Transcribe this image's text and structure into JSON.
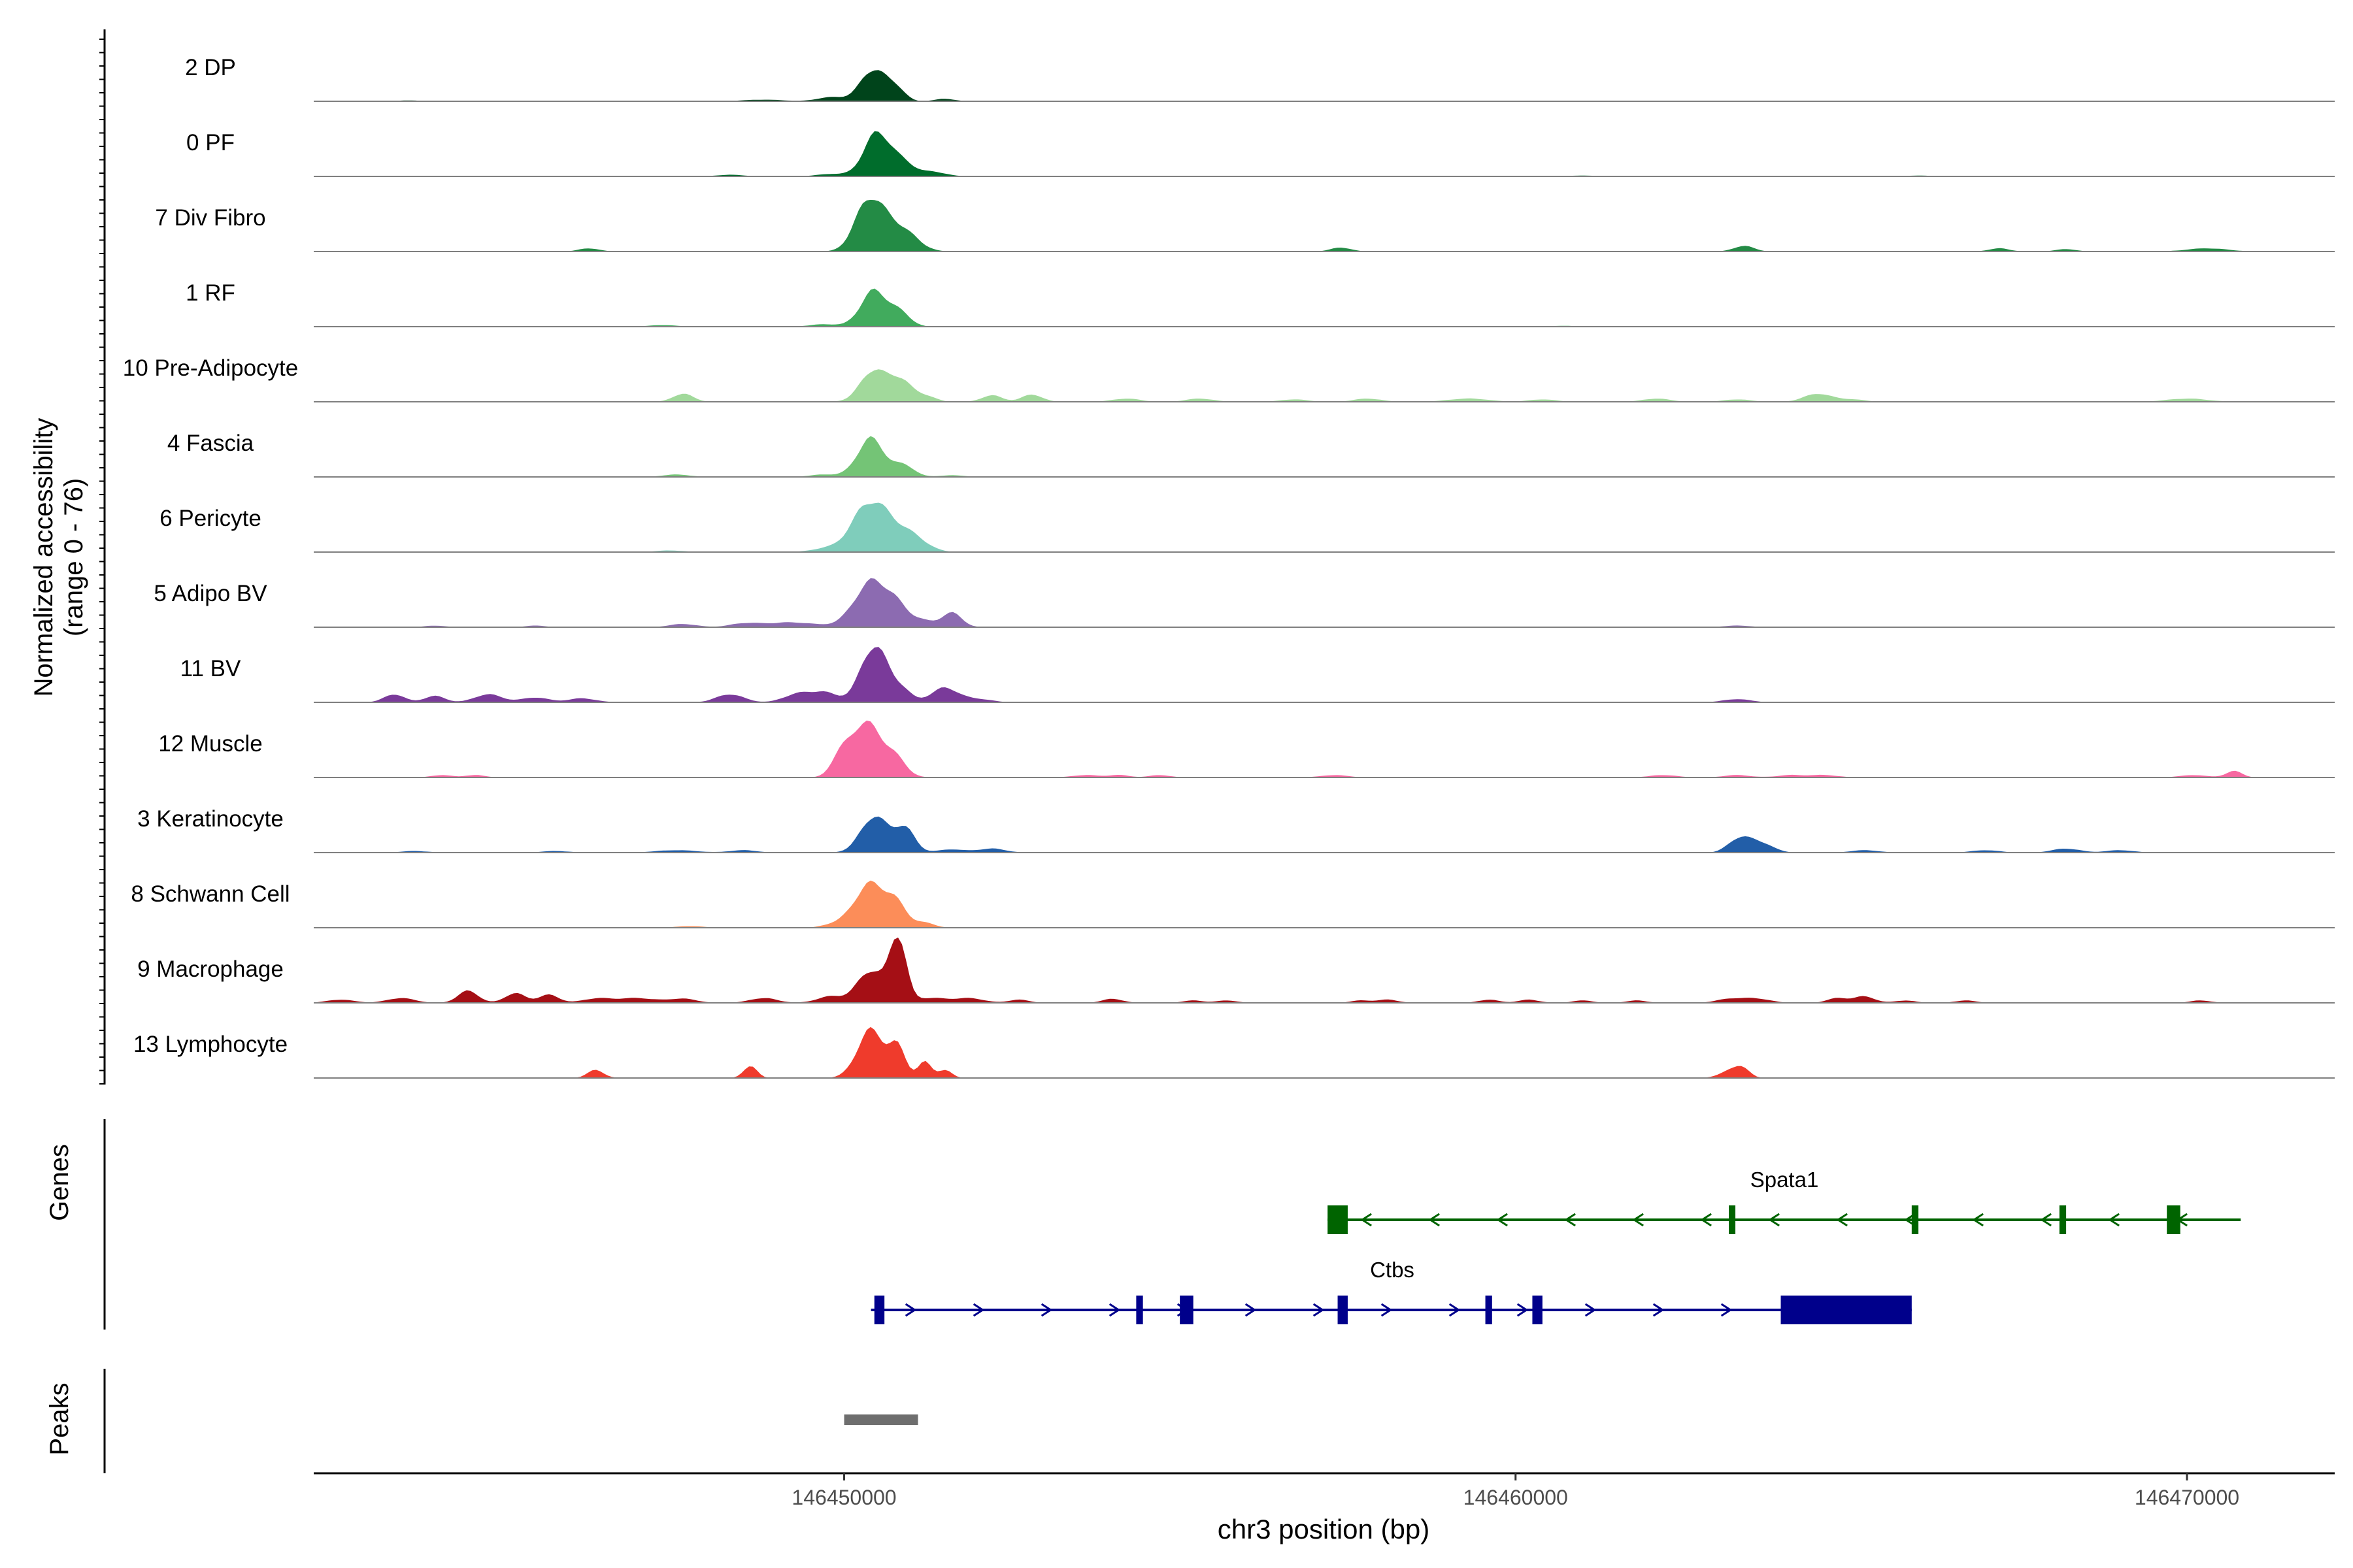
{
  "chart_data": {
    "type": "area",
    "title": "",
    "ylabel_line1": "Normalized accessibility",
    "ylabel_line2": "(range 0 - 76)",
    "yrange": [
      0,
      76
    ],
    "xlabel": "chr3 position (bp)",
    "xlim": [
      146442100,
      146472200
    ],
    "xticks": [
      146450000,
      146460000,
      146470000
    ],
    "xtick_labels": [
      "146450000",
      "146460000",
      "146470000"
    ],
    "panel_labels": {
      "genes": "Genes",
      "peaks": "Peaks"
    },
    "tracks": [
      {
        "label": "2 DP",
        "color": "#00441b",
        "peaks": [
          [
            146450450,
            40,
            200
          ],
          [
            146450800,
            12,
            120
          ],
          [
            146449800,
            5,
            200
          ],
          [
            146451500,
            3,
            150
          ],
          [
            146448800,
            2,
            300
          ],
          [
            146443500,
            1,
            200
          ]
        ]
      },
      {
        "label": "0 PF",
        "color": "#006d2c",
        "peaks": [
          [
            146450500,
            55,
            200
          ],
          [
            146450900,
            14,
            150
          ],
          [
            146451300,
            6,
            200
          ],
          [
            146449800,
            3,
            200
          ],
          [
            146448300,
            2,
            200
          ],
          [
            146461000,
            1,
            200
          ],
          [
            146466000,
            1,
            200
          ]
        ]
      },
      {
        "label": "7 Div Fibro",
        "color": "#238b45",
        "peaks": [
          [
            146450350,
            55,
            200
          ],
          [
            146450700,
            30,
            250
          ],
          [
            146451000,
            8,
            200
          ],
          [
            146446200,
            4,
            150
          ],
          [
            146457400,
            5,
            150
          ],
          [
            146463400,
            7,
            150
          ],
          [
            146467200,
            4,
            150
          ],
          [
            146468200,
            3,
            150
          ],
          [
            146470300,
            4,
            300
          ]
        ]
      },
      {
        "label": "1 RF",
        "color": "#41ab5d",
        "peaks": [
          [
            146450450,
            45,
            200
          ],
          [
            146450850,
            15,
            150
          ],
          [
            146449700,
            3,
            200
          ],
          [
            146447300,
            2,
            200
          ],
          [
            146460700,
            1,
            200
          ]
        ]
      },
      {
        "label": "10 Pre-Adipocyte",
        "color": "#a1d99b",
        "peaks": [
          [
            146450450,
            40,
            200
          ],
          [
            146450850,
            25,
            150
          ],
          [
            146451200,
            8,
            150
          ],
          [
            146447600,
            10,
            150
          ],
          [
            146452200,
            8,
            150
          ],
          [
            146452800,
            9,
            150
          ],
          [
            146464500,
            10,
            200
          ],
          [
            146454200,
            4,
            200
          ],
          [
            146455300,
            4,
            200
          ],
          [
            146456700,
            3,
            200
          ],
          [
            146457800,
            4,
            200
          ],
          [
            146459300,
            4,
            300
          ],
          [
            146460400,
            3,
            200
          ],
          [
            146462100,
            4,
            200
          ],
          [
            146463300,
            3,
            200
          ],
          [
            146465000,
            3,
            200
          ],
          [
            146470000,
            4,
            300
          ]
        ]
      },
      {
        "label": "4 Fascia",
        "color": "#74c476",
        "peaks": [
          [
            146450400,
            48,
            200
          ],
          [
            146450900,
            14,
            150
          ],
          [
            146449700,
            3,
            200
          ],
          [
            146447500,
            3,
            200
          ],
          [
            146451600,
            2,
            200
          ]
        ]
      },
      {
        "label": "6 Pericyte",
        "color": "#7fcdbb",
        "peaks": [
          [
            146450350,
            55,
            250
          ],
          [
            146450750,
            25,
            250
          ],
          [
            146451100,
            10,
            200
          ],
          [
            146449700,
            4,
            200
          ],
          [
            146447400,
            2,
            200
          ]
        ]
      },
      {
        "label": "5 Adipo BV",
        "color": "#8c6bb1",
        "peaks": [
          [
            146450400,
            55,
            250
          ],
          [
            146450800,
            20,
            200
          ],
          [
            146451600,
            18,
            150
          ],
          [
            146449200,
            6,
            400
          ],
          [
            146448500,
            4,
            200
          ],
          [
            146447600,
            4,
            200
          ],
          [
            146451200,
            6,
            150
          ],
          [
            146443900,
            2,
            150
          ],
          [
            146445400,
            2,
            150
          ],
          [
            146463300,
            2,
            200
          ]
        ]
      },
      {
        "label": "11 BV",
        "color": "#7a3a9a",
        "peaks": [
          [
            146450450,
            70,
            200
          ],
          [
            146450850,
            14,
            150
          ],
          [
            146451500,
            18,
            200
          ],
          [
            146449700,
            12,
            200
          ],
          [
            146449300,
            10,
            200
          ],
          [
            146448300,
            10,
            200
          ],
          [
            146443300,
            10,
            150
          ],
          [
            146443900,
            8,
            150
          ],
          [
            146444700,
            10,
            200
          ],
          [
            146445400,
            6,
            200
          ],
          [
            146446100,
            5,
            200
          ],
          [
            146452000,
            4,
            200
          ],
          [
            146463300,
            4,
            200
          ]
        ]
      },
      {
        "label": "12 Muscle",
        "color": "#f768a1",
        "peaks": [
          [
            146450350,
            65,
            250
          ],
          [
            146450800,
            15,
            150
          ],
          [
            146450100,
            10,
            150
          ],
          [
            146449900,
            15,
            120
          ],
          [
            146444000,
            3,
            150
          ],
          [
            146444500,
            3,
            150
          ],
          [
            146453600,
            3,
            200
          ],
          [
            146454100,
            3,
            150
          ],
          [
            146454700,
            3,
            150
          ],
          [
            146457300,
            3,
            200
          ],
          [
            146462200,
            3,
            200
          ],
          [
            146463300,
            3,
            200
          ],
          [
            146464100,
            3,
            200
          ],
          [
            146464600,
            3,
            200
          ],
          [
            146470100,
            3,
            200
          ],
          [
            146470700,
            8,
            120
          ]
        ]
      },
      {
        "label": "3 Keratinocyte",
        "color": "#225ea8",
        "peaks": [
          [
            146450450,
            45,
            200
          ],
          [
            146450900,
            30,
            150
          ],
          [
            146463300,
            14,
            150
          ],
          [
            146463600,
            14,
            200
          ],
          [
            146451600,
            4,
            200
          ],
          [
            146452200,
            5,
            200
          ],
          [
            146447500,
            3,
            300
          ],
          [
            146448500,
            3,
            200
          ],
          [
            146465200,
            3,
            200
          ],
          [
            146467000,
            3,
            200
          ],
          [
            146468200,
            5,
            200
          ],
          [
            146469000,
            3,
            200
          ],
          [
            146443600,
            2,
            200
          ],
          [
            146445700,
            2,
            200
          ]
        ]
      },
      {
        "label": "8 Schwann Cell",
        "color": "#fc8d59",
        "peaks": [
          [
            146450400,
            55,
            250
          ],
          [
            146450800,
            20,
            150
          ],
          [
            146451200,
            6,
            150
          ],
          [
            146449800,
            3,
            150
          ],
          [
            146447700,
            2,
            200
          ]
        ]
      },
      {
        "label": "9 Macrophage",
        "color": "#a50f15",
        "peaks": [
          [
            146450800,
            80,
            120
          ],
          [
            146450400,
            40,
            200
          ],
          [
            146444400,
            15,
            150
          ],
          [
            146445100,
            12,
            150
          ],
          [
            146445600,
            10,
            150
          ],
          [
            146442500,
            4,
            200
          ],
          [
            146443400,
            6,
            200
          ],
          [
            146446300,
            5,
            200
          ],
          [
            146446900,
            6,
            300
          ],
          [
            146447600,
            5,
            200
          ],
          [
            146448800,
            6,
            200
          ],
          [
            146449800,
            8,
            200
          ],
          [
            146451300,
            6,
            300
          ],
          [
            146451900,
            5,
            200
          ],
          [
            146452600,
            4,
            150
          ],
          [
            146454000,
            5,
            150
          ],
          [
            146455200,
            3,
            150
          ],
          [
            146455700,
            3,
            150
          ],
          [
            146457700,
            3,
            150
          ],
          [
            146458100,
            4,
            150
          ],
          [
            146459600,
            4,
            150
          ],
          [
            146460200,
            4,
            150
          ],
          [
            146461000,
            3,
            150
          ],
          [
            146461800,
            3,
            150
          ],
          [
            146463200,
            5,
            200
          ],
          [
            146463600,
            5,
            200
          ],
          [
            146464800,
            6,
            150
          ],
          [
            146465200,
            8,
            150
          ],
          [
            146465800,
            3,
            150
          ],
          [
            146466700,
            3,
            150
          ],
          [
            146470200,
            3,
            150
          ]
        ]
      },
      {
        "label": "13 Lymphocyte",
        "color": "#ef3b2c",
        "peaks": [
          [
            146450400,
            60,
            200
          ],
          [
            146450800,
            35,
            120
          ],
          [
            146451200,
            20,
            100
          ],
          [
            146451500,
            10,
            100
          ],
          [
            146446300,
            10,
            120
          ],
          [
            146448600,
            15,
            100
          ],
          [
            146463200,
            10,
            150
          ],
          [
            146463400,
            10,
            100
          ]
        ]
      }
    ],
    "genes": [
      {
        "name": "Spata1",
        "strand": "-",
        "color": "#006400",
        "start": 146457200,
        "end": 146470800,
        "exons": [
          [
            146457200,
            146457500
          ],
          [
            146463200,
            146463250
          ],
          [
            146465900,
            146466000
          ],
          [
            146468100,
            146468200
          ],
          [
            146469700,
            146469900
          ]
        ]
      },
      {
        "name": "Ctbs",
        "strand": "+",
        "color": "#00008b",
        "start": 146450400,
        "end": 146465900,
        "exons": [
          [
            146450450,
            146450600
          ],
          [
            146454350,
            146454450
          ],
          [
            146455000,
            146455200
          ],
          [
            146457350,
            146457500
          ],
          [
            146459550,
            146459650
          ],
          [
            146460250,
            146460400
          ],
          [
            146463950,
            146465900
          ]
        ]
      }
    ],
    "peaks_region": [
      [
        146450000,
        146451100
      ]
    ]
  }
}
